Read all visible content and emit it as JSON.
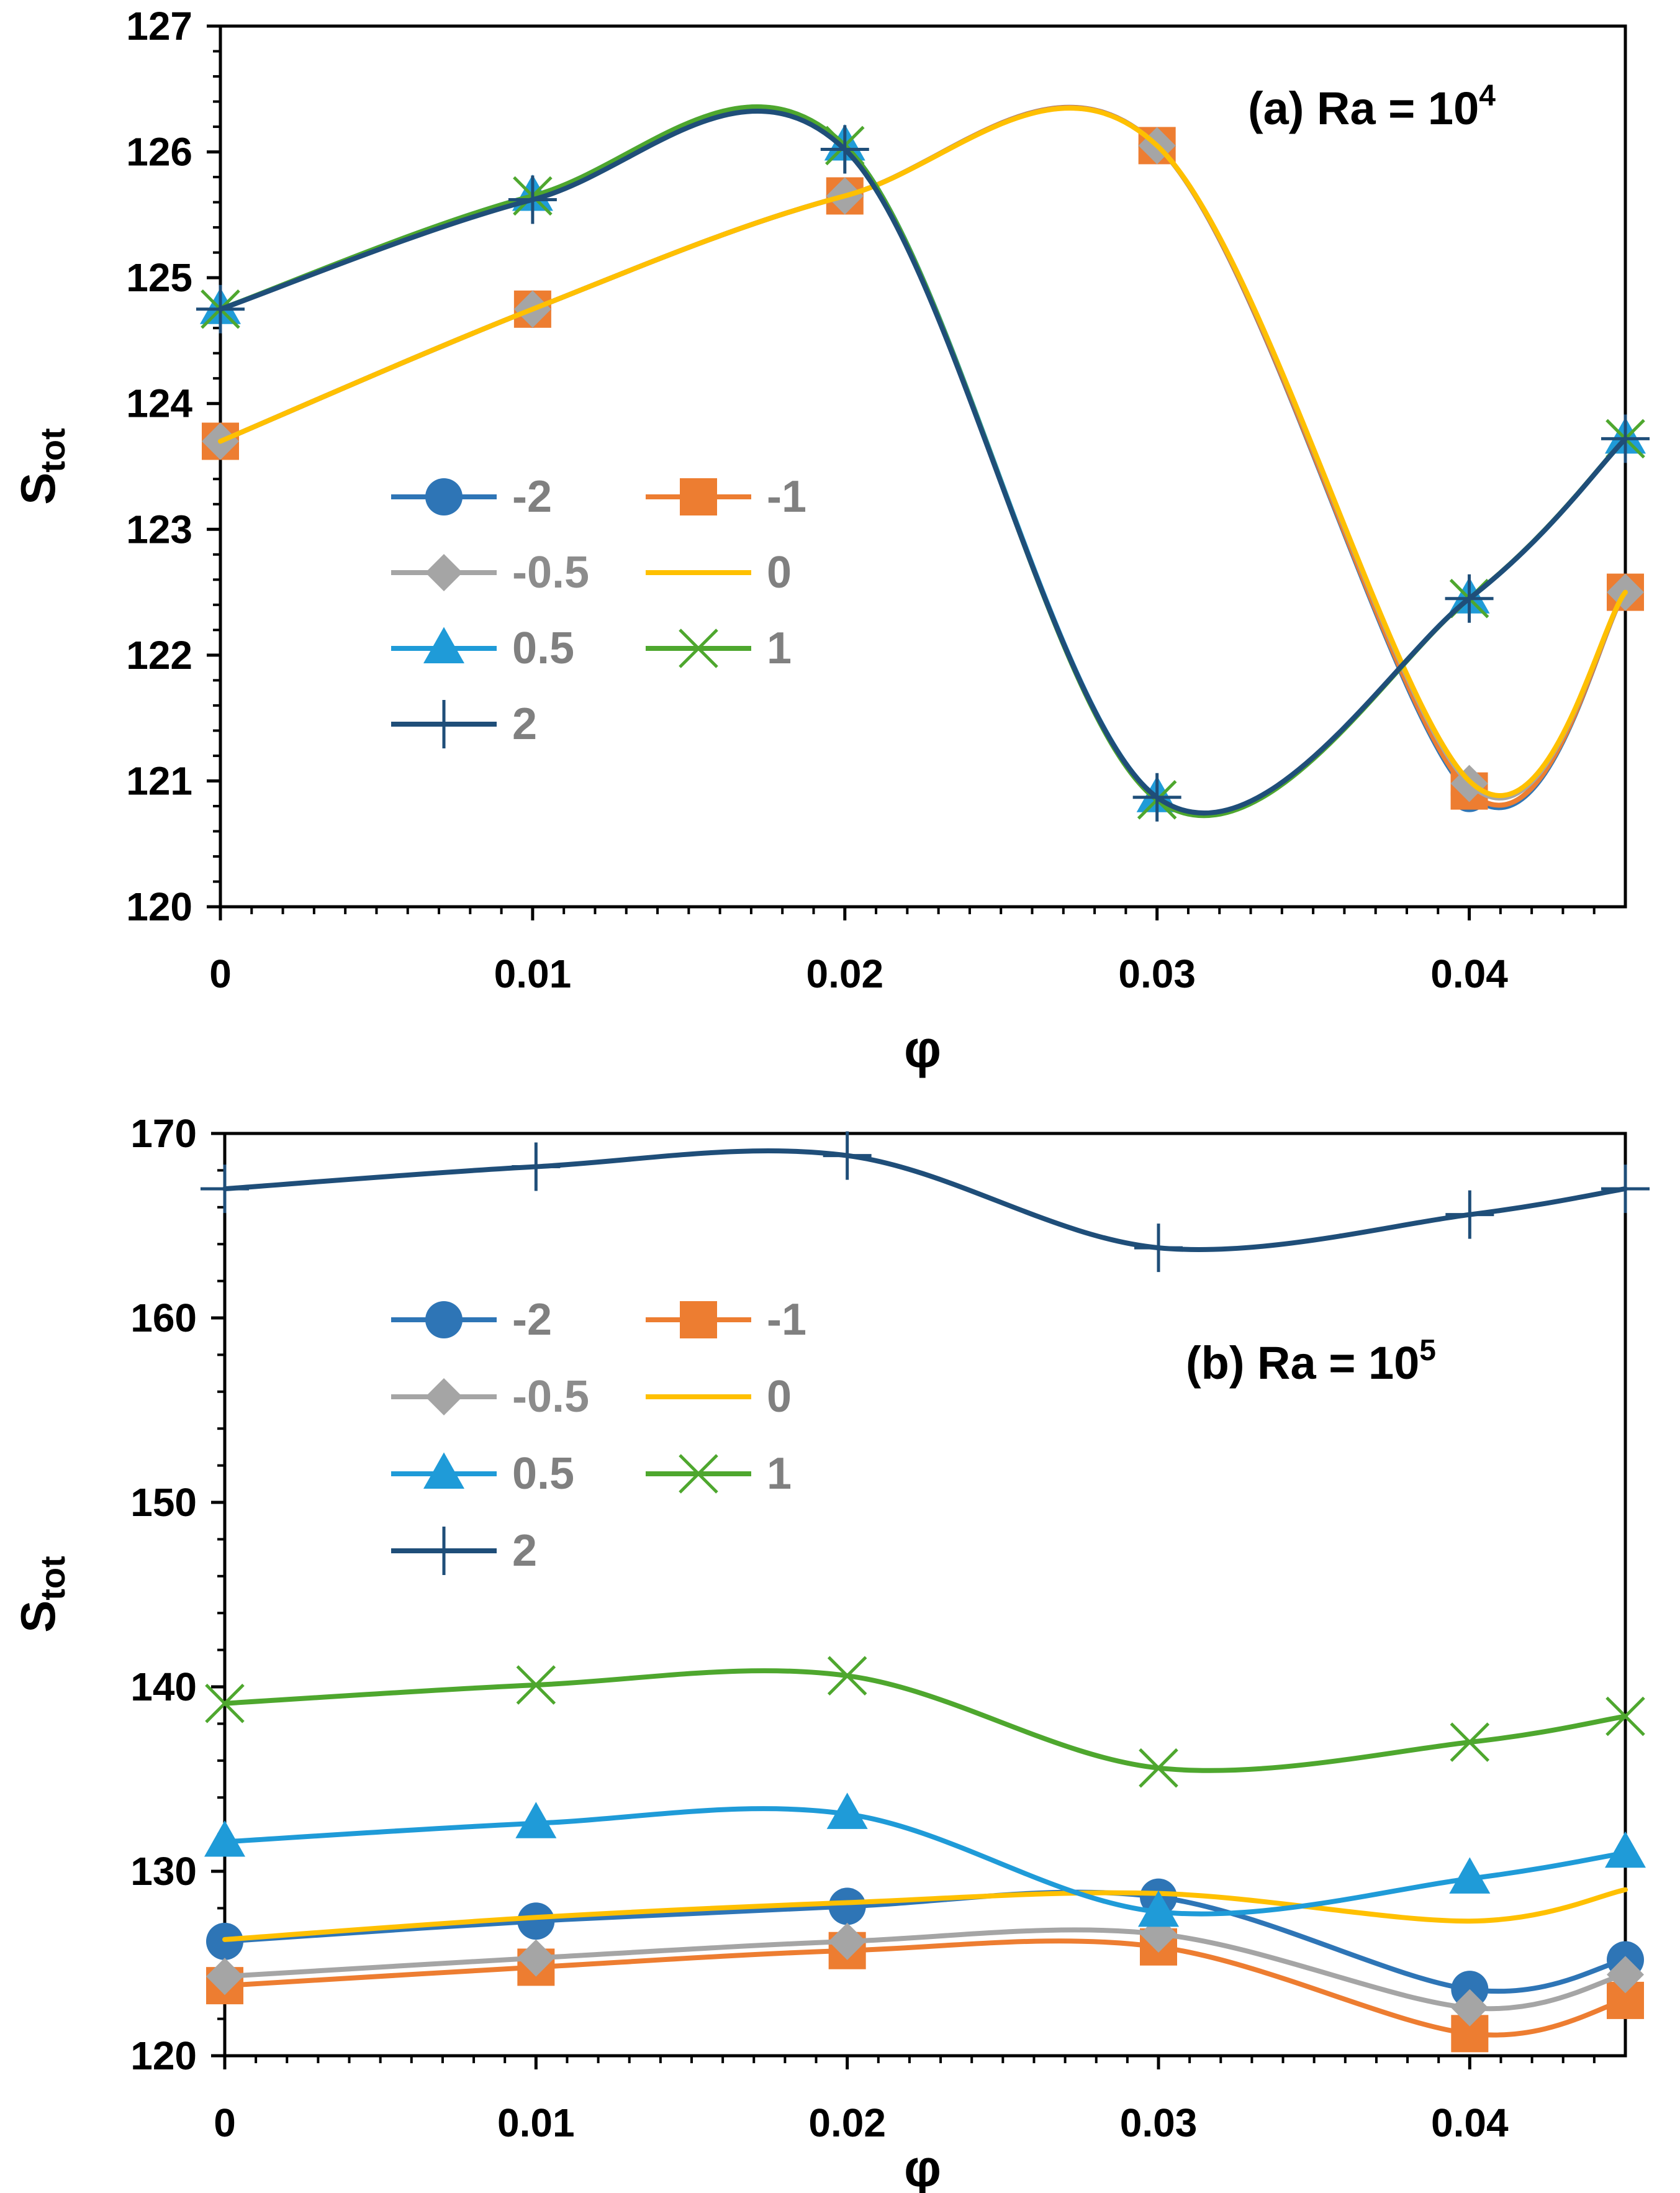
{
  "chart_data": [
    {
      "id": "a",
      "type": "line",
      "title_main": "(a) Ra = 10",
      "title_sup": "4",
      "xlabel": "φ",
      "ylabel_main": "S",
      "ylabel_sub": "tot",
      "xlim": [
        0,
        0.045
      ],
      "ylim": [
        120,
        127
      ],
      "xticks": [
        0,
        0.01,
        0.02,
        0.03,
        0.04
      ],
      "xtick_labels": [
        "0",
        "0.01",
        "0.02",
        "0.03",
        "0.04"
      ],
      "yticks": [
        120,
        121,
        122,
        123,
        124,
        125,
        126,
        127
      ],
      "ytick_labels": [
        "120",
        "121",
        "122",
        "123",
        "124",
        "125",
        "126",
        "127"
      ],
      "x": [
        0,
        0.01,
        0.02,
        0.03,
        0.04,
        0.045
      ],
      "series": [
        {
          "name": "-2",
          "values": [
            123.7,
            124.75,
            125.65,
            126.05,
            120.9,
            122.5
          ]
        },
        {
          "name": "-1",
          "values": [
            123.7,
            124.75,
            125.65,
            126.05,
            120.92,
            122.5
          ]
        },
        {
          "name": "-0.5",
          "values": [
            123.7,
            124.75,
            125.65,
            126.05,
            120.98,
            122.5
          ]
        },
        {
          "name": "0",
          "values": [
            123.7,
            124.75,
            125.65,
            126.05,
            121.0,
            122.5
          ]
        },
        {
          "name": "0.5",
          "values": [
            124.75,
            125.65,
            126.05,
            120.87,
            122.45,
            123.72
          ]
        },
        {
          "name": "1",
          "values": [
            124.75,
            125.65,
            126.05,
            120.85,
            122.45,
            123.72
          ]
        },
        {
          "name": "2",
          "values": [
            124.75,
            125.62,
            126.02,
            120.87,
            122.45,
            123.72
          ]
        }
      ]
    },
    {
      "id": "b",
      "type": "line",
      "title_main": "(b) Ra = 10",
      "title_sup": "5",
      "xlabel": "φ",
      "ylabel_main": "S",
      "ylabel_sub": "tot",
      "xlim": [
        0,
        0.045
      ],
      "ylim": [
        120,
        170
      ],
      "xticks": [
        0,
        0.01,
        0.02,
        0.03,
        0.04
      ],
      "xtick_labels": [
        "0",
        "0.01",
        "0.02",
        "0.03",
        "0.04"
      ],
      "yticks": [
        120,
        130,
        140,
        150,
        160,
        170
      ],
      "ytick_labels": [
        "120",
        "130",
        "140",
        "150",
        "160",
        "170"
      ],
      "x": [
        0,
        0.01,
        0.02,
        0.03,
        0.04,
        0.045
      ],
      "series": [
        {
          "name": "-2",
          "values": [
            126.2,
            127.3,
            128.1,
            128.6,
            123.6,
            125.2
          ]
        },
        {
          "name": "-1",
          "values": [
            123.8,
            124.8,
            125.7,
            125.9,
            121.2,
            123.0
          ]
        },
        {
          "name": "-0.5",
          "values": [
            124.3,
            125.3,
            126.2,
            126.6,
            122.6,
            124.4
          ]
        },
        {
          "name": "0",
          "values": [
            126.3,
            127.5,
            128.3,
            128.8,
            127.3,
            129.0
          ]
        },
        {
          "name": "0.5",
          "values": [
            131.6,
            132.6,
            133.1,
            127.8,
            129.6,
            131.0
          ]
        },
        {
          "name": "1",
          "values": [
            139.1,
            140.1,
            140.6,
            135.6,
            137.0,
            138.4
          ]
        },
        {
          "name": "2",
          "values": [
            167.0,
            168.2,
            168.8,
            163.8,
            165.6,
            167.0
          ]
        }
      ]
    }
  ],
  "series_styles": [
    {
      "name": "-2",
      "color": "#2e75b6",
      "marker": "circle"
    },
    {
      "name": "-1",
      "color": "#ed7d31",
      "marker": "square"
    },
    {
      "name": "-0.5",
      "color": "#a5a5a5",
      "marker": "diamond"
    },
    {
      "name": "0",
      "color": "#ffc000",
      "marker": "none"
    },
    {
      "name": "0.5",
      "color": "#1f9bd8",
      "marker": "triangle"
    },
    {
      "name": "1",
      "color": "#4ea72e",
      "marker": "x"
    },
    {
      "name": "2",
      "color": "#1f4e79",
      "marker": "plus"
    }
  ]
}
